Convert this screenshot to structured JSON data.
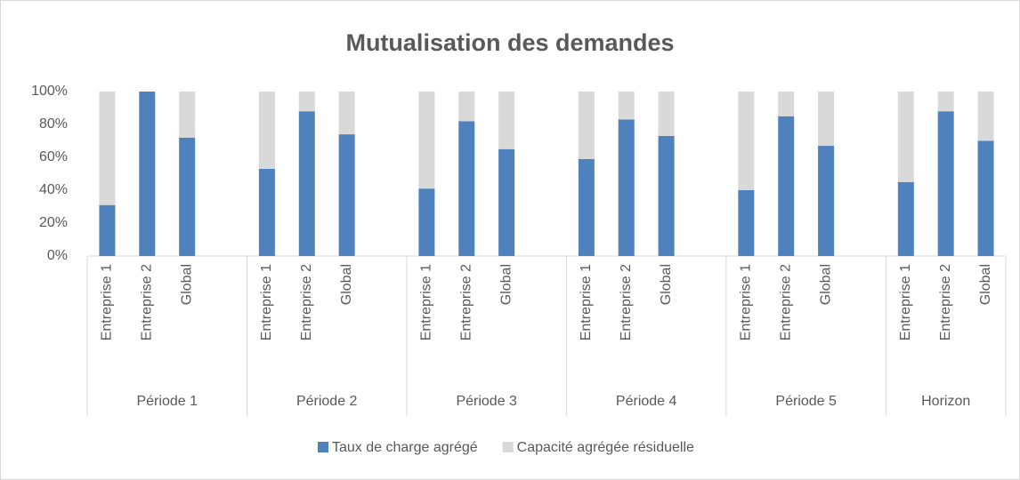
{
  "chart_data": {
    "type": "stacked_bar",
    "title": "Mutualisation des demandes",
    "categories": [
      "Entreprise 1",
      "Entreprise 2",
      "Global",
      null,
      "Entreprise 1",
      "Entreprise 2",
      "Global",
      null,
      "Entreprise 1",
      "Entreprise 2",
      "Global",
      null,
      "Entreprise 1",
      "Entreprise 2",
      "Global",
      null,
      "Entreprise 1",
      "Entreprise 2",
      "Global",
      null,
      "Entreprise 1",
      "Entreprise 2",
      "Global"
    ],
    "groups": [
      "Période 1",
      "Période 2",
      "Période 3",
      "Période 4",
      "Période 5",
      "Horizon"
    ],
    "series": [
      {
        "name": "Taux de charge agrégé",
        "color": "#4f81bd",
        "values": [
          31,
          100,
          72,
          null,
          53,
          88,
          74,
          null,
          41,
          82,
          65,
          null,
          59,
          83,
          73,
          null,
          40,
          85,
          67,
          null,
          45,
          88,
          70
        ]
      },
      {
        "name": "Capacité agrégée résiduelle",
        "color": "#d9d9d9",
        "values": [
          69,
          0,
          28,
          null,
          47,
          12,
          26,
          null,
          59,
          18,
          35,
          null,
          41,
          17,
          27,
          null,
          60,
          15,
          33,
          null,
          55,
          12,
          30
        ]
      }
    ],
    "ylim": [
      0,
      100
    ],
    "yticks": [
      {
        "value": 0,
        "label": "0%"
      },
      {
        "value": 20,
        "label": "20%"
      },
      {
        "value": 40,
        "label": "40%"
      },
      {
        "value": 60,
        "label": "60%"
      },
      {
        "value": 80,
        "label": "80%"
      },
      {
        "value": 100,
        "label": "100%"
      }
    ],
    "grid": false,
    "legend": "bottom"
  }
}
